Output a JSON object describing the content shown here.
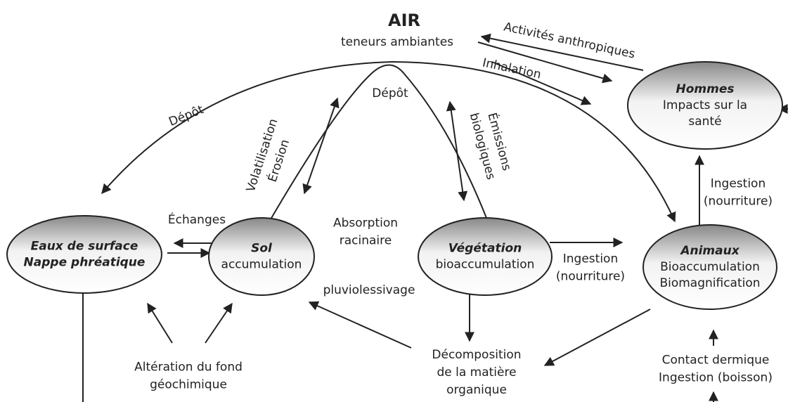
{
  "air": {
    "title": "AIR",
    "subtitle": "teneurs ambiantes"
  },
  "nodes": [
    {
      "title": "Hommes",
      "lines": [
        "Impacts sur la",
        "santé"
      ]
    },
    {
      "title": "Eaux de surface",
      "lines": [
        "Nappe phréatique"
      ]
    },
    {
      "title": "Sol",
      "lines": [
        "accumulation"
      ]
    },
    {
      "title": "Végétation",
      "lines": [
        "bioaccumulation"
      ]
    },
    {
      "title": "Animaux",
      "lines": [
        "Bioaccumulation",
        "Biomagnification"
      ]
    }
  ],
  "labels": [
    {
      "lines": [
        "Activités anthropiques"
      ]
    },
    {
      "lines": [
        "Inhalation"
      ]
    },
    {
      "lines": [
        "Dépôt"
      ]
    },
    {
      "lines": [
        "Dépôt"
      ]
    },
    {
      "lines": [
        "Volatilisation",
        "Érosion"
      ]
    },
    {
      "lines": [
        "Émissions",
        "biologiques"
      ]
    },
    {
      "lines": [
        "Échanges"
      ]
    },
    {
      "lines": [
        "Absorption",
        "racinaire"
      ]
    },
    {
      "lines": [
        "Ingestion",
        "(nourriture)"
      ]
    },
    {
      "lines": [
        "pluviolessivage"
      ]
    },
    {
      "lines": [
        "Ingestion",
        "(nourriture)"
      ]
    },
    {
      "lines": [
        "Décomposition",
        "de la matière",
        "organique"
      ]
    },
    {
      "lines": [
        "Altération du fond",
        "géochimique"
      ]
    },
    {
      "lines": [
        "Contact dermique",
        "Ingestion (boisson)"
      ]
    }
  ]
}
